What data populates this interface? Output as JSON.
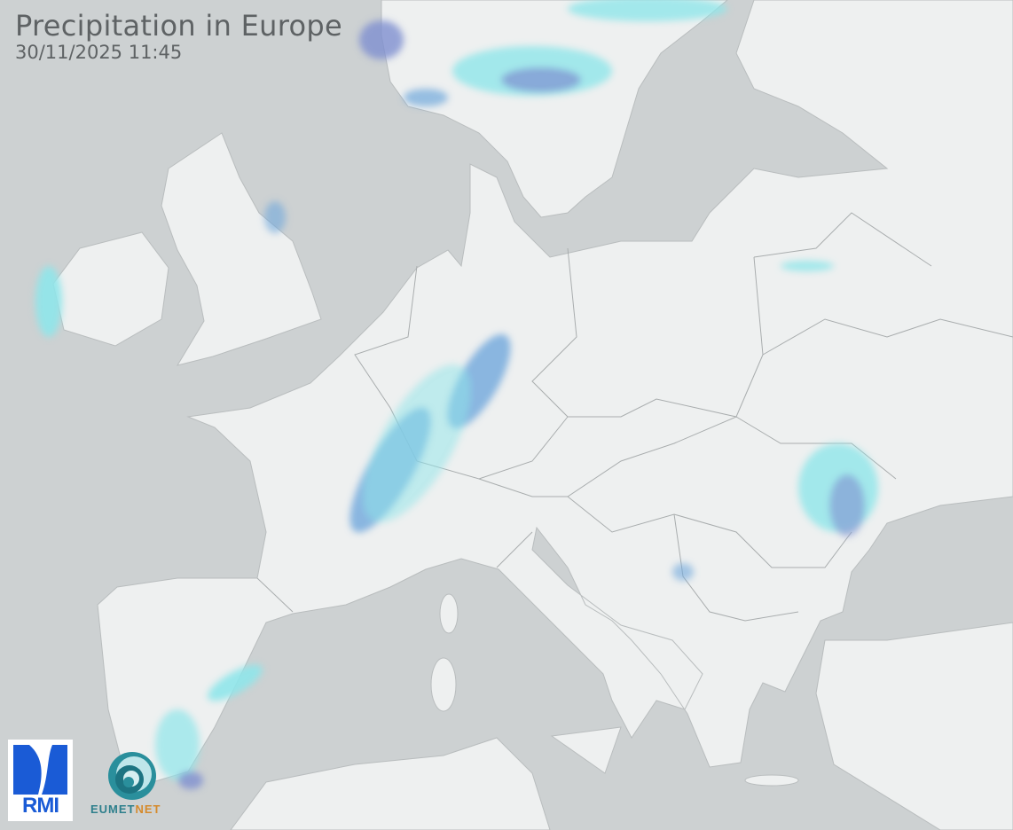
{
  "header": {
    "title": "Precipitation in Europe",
    "timestamp": "30/11/2025 11:45"
  },
  "logos": {
    "rmi": "RMI",
    "eumetnet_a": "EUMET",
    "eumetnet_b": "NET"
  },
  "colors": {
    "sea": "#cdd1d2",
    "land": "#eef0f0",
    "border": "#a9adae",
    "precip_light": "#8fe6ea",
    "precip_moderate": "#6fa8dc",
    "precip_heavy": "#7e8fd0"
  }
}
